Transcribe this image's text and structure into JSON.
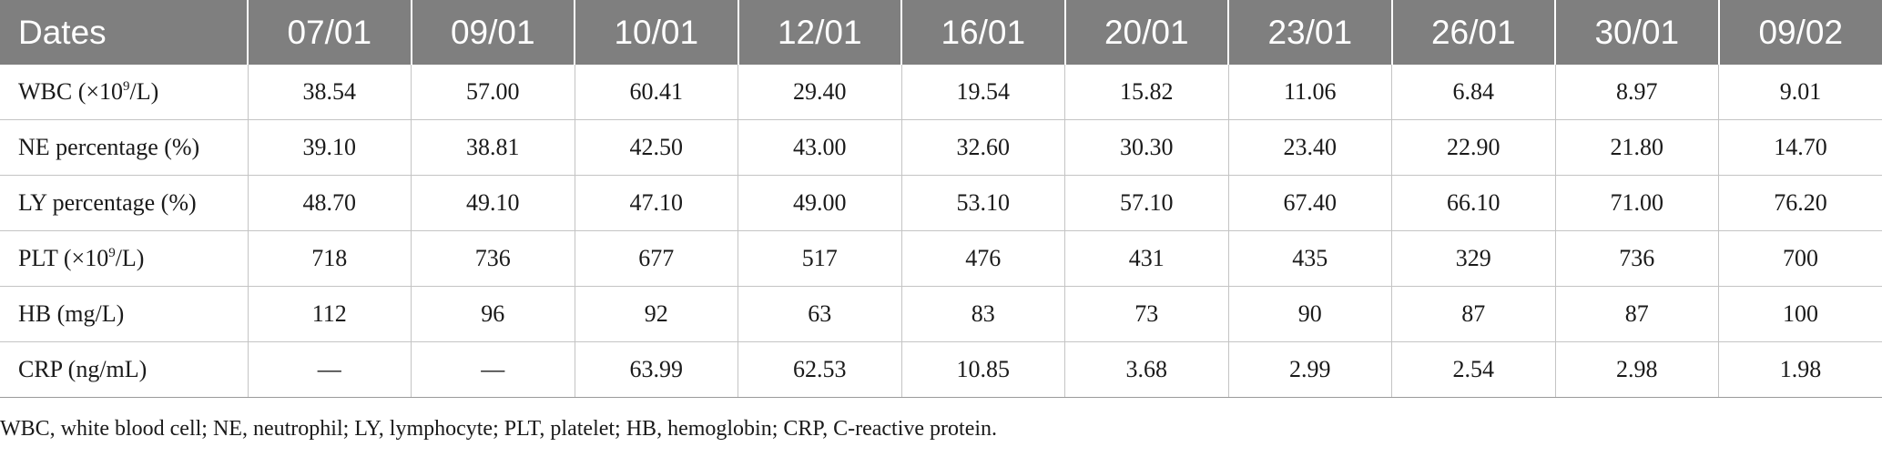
{
  "header": {
    "first": "Dates",
    "dates": [
      "07/01",
      "09/01",
      "10/01",
      "12/01",
      "16/01",
      "20/01",
      "23/01",
      "26/01",
      "30/01",
      "09/02"
    ]
  },
  "rows": [
    {
      "label_pre": "WBC (×10",
      "label_sup": "9",
      "label_post": "/L)",
      "values": [
        "38.54",
        "57.00",
        "60.41",
        "29.40",
        "19.54",
        "15.82",
        "11.06",
        "6.84",
        "8.97",
        "9.01"
      ]
    },
    {
      "label_pre": "NE percentage (%)",
      "label_sup": "",
      "label_post": "",
      "values": [
        "39.10",
        "38.81",
        "42.50",
        "43.00",
        "32.60",
        "30.30",
        "23.40",
        "22.90",
        "21.80",
        "14.70"
      ]
    },
    {
      "label_pre": "LY percentage (%)",
      "label_sup": "",
      "label_post": "",
      "values": [
        "48.70",
        "49.10",
        "47.10",
        "49.00",
        "53.10",
        "57.10",
        "67.40",
        "66.10",
        "71.00",
        "76.20"
      ]
    },
    {
      "label_pre": "PLT (×10",
      "label_sup": "9",
      "label_post": "/L)",
      "values": [
        "718",
        "736",
        "677",
        "517",
        "476",
        "431",
        "435",
        "329",
        "736",
        "700"
      ]
    },
    {
      "label_pre": "HB (mg/L)",
      "label_sup": "",
      "label_post": "",
      "values": [
        "112",
        "96",
        "92",
        "63",
        "83",
        "73",
        "90",
        "87",
        "87",
        "100"
      ]
    },
    {
      "label_pre": "CRP (ng/mL)",
      "label_sup": "",
      "label_post": "",
      "values": [
        "—",
        "—",
        "63.99",
        "62.53",
        "10.85",
        "3.68",
        "2.99",
        "2.54",
        "2.98",
        "1.98"
      ]
    }
  ],
  "footnote": "WBC, white blood cell; NE, neutrophil; LY, lymphocyte; PLT, platelet; HB, hemoglobin; CRP, C-reactive protein.",
  "colors": {
    "header_bg": "#7f7f7f",
    "header_text": "#ffffff",
    "body_text": "#1a1a1a",
    "rule": "#c4c4c4"
  }
}
